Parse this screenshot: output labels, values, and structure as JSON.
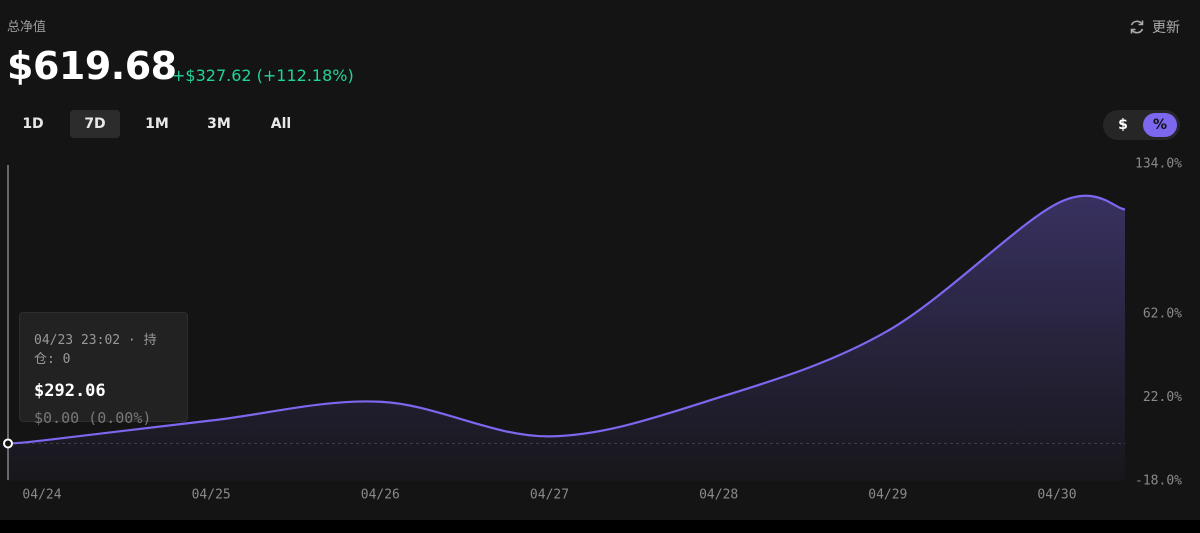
{
  "header": {
    "label": "总净值",
    "value": "$619.68",
    "change": "+$327.62 (+112.18%)",
    "refresh": "更新"
  },
  "ranges": [
    "1D",
    "7D",
    "1M",
    "3M",
    "All"
  ],
  "units": [
    "$",
    "%"
  ],
  "tooltip": {
    "time": "04/23 23:02 · 持仓: 0",
    "value": "$292.06",
    "change": "$0.00 (0.00%)"
  },
  "chart_data": {
    "type": "line",
    "categories": [
      null,
      "04/24",
      "04/25",
      "04/26",
      "04/27",
      "04/28",
      "04/29",
      "04/30",
      null
    ],
    "values": [
      0,
      1.4,
      11,
      20,
      3.4,
      22,
      54,
      115,
      112.18
    ],
    "color": "#7b68ee",
    "ylim": [
      -18,
      134
    ],
    "yticks": [
      {
        "value": 134,
        "label": "134.0%"
      },
      {
        "value": 62,
        "label": "62.0%"
      },
      {
        "value": 22,
        "label": "22.0%"
      },
      {
        "value": -18,
        "label": "-18.0%"
      }
    ]
  }
}
